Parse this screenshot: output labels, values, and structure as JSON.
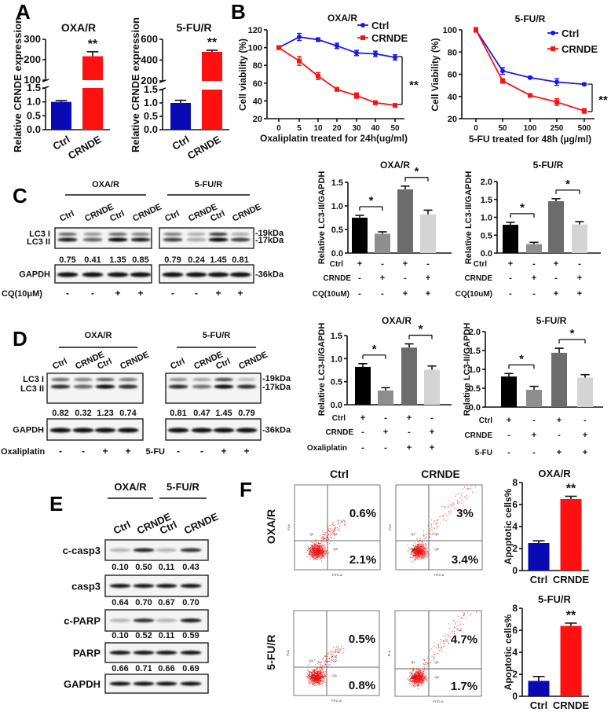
{
  "panel_labels": {
    "a": "A",
    "b": "B",
    "c": "C",
    "d": "D",
    "e": "E",
    "f": "F"
  },
  "colors": {
    "ctrl": "#0a0ab4",
    "crnde": "#ff1111",
    "ctrl_line": "#1a1ae6",
    "lc3_bars": [
      "#000000",
      "#8e8e8e",
      "#6c6c6c",
      "#d4d4d4"
    ]
  },
  "chart_data": [
    {
      "id": "A-OXA",
      "type": "bar",
      "title": "OXA/R",
      "ylabel": "Relative CRNDE expression",
      "categories": [
        "Ctrl",
        "CRNDE"
      ],
      "values": [
        1.0,
        217
      ],
      "errors": [
        0.05,
        22
      ],
      "yticks": [
        "0.0",
        "0.5",
        "1.0",
        "1.5",
        "100",
        "200",
        "300"
      ],
      "axis_break": [
        1.5,
        100
      ],
      "ylim": [
        0,
        300
      ],
      "significance": [
        {
          "bar": 1,
          "label": "**"
        }
      ],
      "bar_colors": [
        "#0a0ab4",
        "#ff1111"
      ]
    },
    {
      "id": "A-5FU",
      "type": "bar",
      "title": "5-FU/R",
      "ylabel": "Relative CRNDE expression",
      "categories": [
        "Ctrl",
        "CRNDE"
      ],
      "values": [
        1.0,
        480
      ],
      "errors": [
        0.1,
        15
      ],
      "yticks": [
        "0.0",
        "0.5",
        "1.0",
        "1.5",
        "200",
        "400",
        "600"
      ],
      "axis_break": [
        1.5,
        200
      ],
      "ylim": [
        0,
        600
      ],
      "significance": [
        {
          "bar": 1,
          "label": "**"
        }
      ],
      "bar_colors": [
        "#0a0ab4",
        "#ff1111"
      ]
    },
    {
      "id": "B-OXA",
      "type": "line",
      "title": "OXA/R",
      "xlabel": "Oxaliplatin treated for 24h(ug/ml)",
      "ylabel": "Cell viability (%)",
      "x": [
        "0",
        "5",
        "10",
        "20",
        "30",
        "40",
        "50"
      ],
      "ylim": [
        20,
        120
      ],
      "yticks": [
        "20",
        "40",
        "60",
        "80",
        "100",
        "120"
      ],
      "series": [
        {
          "name": "Ctrl",
          "values": [
            100,
            112,
            109,
            102,
            94,
            93,
            89
          ],
          "errors": [
            2,
            4,
            2,
            3,
            3,
            3,
            3
          ],
          "color": "#1a1ae6",
          "marker": "circle"
        },
        {
          "name": "CRNDE",
          "values": [
            100,
            85,
            68,
            53,
            46,
            38,
            35
          ],
          "errors": [
            2,
            5,
            4,
            2,
            3,
            2,
            1
          ],
          "color": "#ff1111",
          "marker": "square"
        }
      ],
      "significance": "**",
      "legend": "top-right"
    },
    {
      "id": "B-5FU",
      "type": "line",
      "title": "5-FU/R",
      "xlabel": "5-FU treated for 48h (µg/ml)",
      "ylabel": "Cell Viability (%)",
      "x": [
        "0",
        "50",
        "100",
        "250",
        "500"
      ],
      "ylim": [
        20,
        100
      ],
      "yticks": [
        "20",
        "40",
        "60",
        "80",
        "100"
      ],
      "series": [
        {
          "name": "Ctrl",
          "values": [
            100,
            63,
            57,
            53,
            51
          ],
          "errors": [
            2,
            3,
            1,
            3,
            1
          ],
          "color": "#1a1ae6",
          "marker": "circle"
        },
        {
          "name": "CRNDE",
          "values": [
            100,
            54,
            41,
            35,
            27
          ],
          "errors": [
            2,
            2,
            1,
            3,
            2
          ],
          "color": "#ff1111",
          "marker": "square"
        }
      ],
      "significance": "**",
      "legend": "top-right"
    },
    {
      "id": "C-OXA",
      "type": "bar",
      "title": "OXA/R",
      "ylabel": "Relative LC3-II/GAPDH",
      "values": [
        0.75,
        0.41,
        1.35,
        0.82
      ],
      "errors": [
        0.05,
        0.04,
        0.07,
        0.09
      ],
      "ylim": [
        0,
        1.5
      ],
      "yticks": [
        "0.0",
        "0.5",
        "1.0",
        "1.5"
      ],
      "conditions": [
        {
          "label": "Ctrl",
          "marks": [
            "+",
            "-",
            "+",
            "-"
          ]
        },
        {
          "label": "CRNDE",
          "marks": [
            "-",
            "+",
            "-",
            "+"
          ]
        },
        {
          "label": "CQ(10uM)",
          "marks": [
            "-",
            "-",
            "+",
            "+"
          ]
        }
      ],
      "brackets": [
        {
          "pair": [
            0,
            1
          ],
          "label": "*"
        },
        {
          "pair": [
            2,
            3
          ],
          "label": "*"
        }
      ]
    },
    {
      "id": "C-5FU",
      "type": "bar",
      "title": "5-FU/R",
      "ylabel": "Relative LC3-II/GAPDH",
      "values": [
        0.79,
        0.25,
        1.45,
        0.8
      ],
      "errors": [
        0.07,
        0.05,
        0.07,
        0.08
      ],
      "ylim": [
        0,
        2.0
      ],
      "yticks": [
        "0.0",
        "0.5",
        "1.0",
        "1.5",
        "2.0"
      ],
      "conditions": [
        {
          "label": "Ctrl",
          "marks": [
            "+",
            "-",
            "+",
            "-"
          ]
        },
        {
          "label": "CRNDE",
          "marks": [
            "-",
            "+",
            "-",
            "+"
          ]
        },
        {
          "label": "CQ(10uM)",
          "marks": [
            "-",
            "-",
            "+",
            "+"
          ]
        }
      ],
      "brackets": [
        {
          "pair": [
            0,
            1
          ],
          "label": "*"
        },
        {
          "pair": [
            2,
            3
          ],
          "label": "*"
        }
      ]
    },
    {
      "id": "D-OXA",
      "type": "bar",
      "title": "OXA/R",
      "ylabel": "Relative LC3-II/GAPDH",
      "values": [
        0.82,
        0.31,
        1.24,
        0.76
      ],
      "errors": [
        0.07,
        0.06,
        0.08,
        0.08
      ],
      "ylim": [
        0,
        1.5
      ],
      "yticks": [
        "0.0",
        "0.5",
        "1.0",
        "1.5"
      ],
      "conditions": [
        {
          "label": "Ctrl",
          "marks": [
            "+",
            "-",
            "+",
            "-"
          ]
        },
        {
          "label": "CRNDE",
          "marks": [
            "-",
            "+",
            "-",
            "+"
          ]
        },
        {
          "label": "Oxaliplatin",
          "marks": [
            "-",
            "-",
            "+",
            "+"
          ]
        }
      ],
      "brackets": [
        {
          "pair": [
            0,
            1
          ],
          "label": "*"
        },
        {
          "pair": [
            2,
            3
          ],
          "label": "*"
        }
      ]
    },
    {
      "id": "D-5FU",
      "type": "bar",
      "title": "5-FU/R",
      "ylabel": "Relative LC3-II/GAPDH",
      "values": [
        0.81,
        0.46,
        1.44,
        0.78
      ],
      "errors": [
        0.08,
        0.09,
        0.12,
        0.08
      ],
      "ylim": [
        0,
        2.0
      ],
      "yticks": [
        "0.0",
        "0.5",
        "1.0",
        "1.5",
        "2.0"
      ],
      "conditions": [
        {
          "label": "Ctrl",
          "marks": [
            "+",
            "-",
            "+",
            "-"
          ]
        },
        {
          "label": "CRNDE",
          "marks": [
            "-",
            "+",
            "-",
            "+"
          ]
        },
        {
          "label": "5-FU",
          "marks": [
            "-",
            "-",
            "+",
            "+"
          ]
        }
      ],
      "brackets": [
        {
          "pair": [
            0,
            1
          ],
          "label": "*"
        },
        {
          "pair": [
            2,
            3
          ],
          "label": "*"
        }
      ]
    },
    {
      "id": "F-OXA",
      "type": "bar",
      "title": "OXA/R",
      "ylabel": "Apoptotic cells%",
      "categories": [
        "Ctrl",
        "CRNDE"
      ],
      "values": [
        2.5,
        6.5
      ],
      "errors": [
        0.2,
        0.25
      ],
      "ylim": [
        0,
        8
      ],
      "yticks": [
        "0",
        "2",
        "4",
        "6",
        "8"
      ],
      "significance": [
        {
          "bar": 1,
          "label": "**"
        }
      ],
      "bar_colors": [
        "#0a0ab4",
        "#ff1111"
      ]
    },
    {
      "id": "F-5FU",
      "type": "bar",
      "title": "5-FU/R",
      "ylabel": "Apoptotic cells%",
      "categories": [
        "Ctrl",
        "CRNDE"
      ],
      "values": [
        1.4,
        6.4
      ],
      "errors": [
        0.4,
        0.25
      ],
      "ylim": [
        0,
        8
      ],
      "yticks": [
        "0",
        "2",
        "4",
        "6",
        "8"
      ],
      "significance": [
        {
          "bar": 1,
          "label": "**"
        }
      ],
      "bar_colors": [
        "#0a0ab4",
        "#ff1111"
      ]
    }
  ],
  "blots": {
    "C": {
      "groups": [
        {
          "title": "OXA/R",
          "lanes": [
            "Ctrl",
            "CRNDE",
            "Ctrl",
            "CRNDE"
          ],
          "ratios": [
            "0.75",
            "0.41",
            "1.35",
            "0.85"
          ],
          "treatment": [
            "-",
            "-",
            "+",
            "+"
          ]
        },
        {
          "title": "5-FU/R",
          "lanes": [
            "Ctrl",
            "CRNDE",
            "Ctrl",
            "CRNDE"
          ],
          "ratios": [
            "0.79",
            "0.24",
            "1.45",
            "0.81"
          ],
          "treatment": [
            "-",
            "-",
            "+",
            "+"
          ]
        }
      ],
      "row_labels": [
        "LC3 I",
        "LC3 II",
        "GAPDH"
      ],
      "markers": [
        "-19kDa",
        "-17kDa",
        "-36kDa"
      ],
      "treatment_labels": [
        "CQ(10μM)"
      ]
    },
    "D": {
      "groups": [
        {
          "title": "OXA/R",
          "lanes": [
            "Ctrl",
            "CRNDE",
            "Ctrl",
            "CRNDE"
          ],
          "ratios": [
            "0.82",
            "0.32",
            "1.23",
            "0.74"
          ],
          "treatment": [
            "-",
            "-",
            "+",
            "+"
          ]
        },
        {
          "title": "5-FU/R",
          "lanes": [
            "Ctrl",
            "CRNDE",
            "Ctrl",
            "CRNDE"
          ],
          "ratios": [
            "0.81",
            "0.47",
            "1.45",
            "0.79"
          ],
          "treatment": [
            "-",
            "-",
            "+",
            "+"
          ]
        }
      ],
      "row_labels": [
        "LC3 I",
        "LC3 II",
        "GAPDH"
      ],
      "markers": [
        "-19kDa",
        "-17kDa",
        "-36kDa"
      ],
      "treatment_labels": [
        "Oxaliplatin",
        "5-FU"
      ]
    },
    "E": {
      "groups": [
        {
          "title": "OXA/R"
        },
        {
          "title": "5-FU/R"
        }
      ],
      "lanes": [
        "Ctrl",
        "CRNDE",
        "Ctrl",
        "CRNDE"
      ],
      "rows": [
        {
          "label": "c-casp3",
          "ratios": [
            "0.10",
            "0.50",
            "0.11",
            "0.43"
          ]
        },
        {
          "label": "casp3",
          "ratios": [
            "0.64",
            "0.70",
            "0.67",
            "0.70"
          ]
        },
        {
          "label": "c-PARP",
          "ratios": [
            "0.10",
            "0.52",
            "0.11",
            "0.59"
          ]
        },
        {
          "label": "PARP",
          "ratios": [
            "0.66",
            "0.71",
            "0.66",
            "0.69"
          ]
        },
        {
          "label": "GAPDH",
          "ratios": []
        }
      ]
    }
  },
  "flow": {
    "columns": [
      "Ctrl",
      "CRNDE"
    ],
    "rows": [
      "OXA/R",
      "5-FU/R"
    ],
    "quadrants": [
      [
        {
          "upper_right": "0.6%",
          "lower_right": "2.1%"
        },
        {
          "upper_right": "3%",
          "lower_right": "3.4%"
        }
      ],
      [
        {
          "upper_right": "0.5%",
          "lower_right": "0.8%"
        },
        {
          "upper_right": "4.7%",
          "lower_right": "1.7%"
        }
      ]
    ],
    "gate_labels": [
      "Q1",
      "Q2",
      "Q3",
      "Q4"
    ],
    "axis_labels": {
      "x": "FITC-A",
      "y": "PI-A"
    }
  }
}
